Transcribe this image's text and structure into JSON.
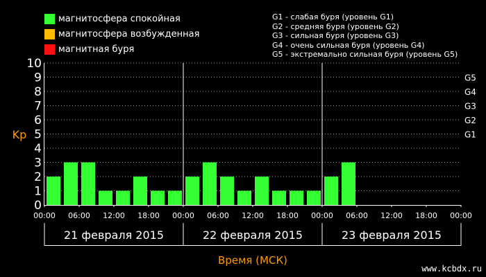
{
  "legend": [
    {
      "label": "магнитосфера спокойная",
      "color": "#33ff33"
    },
    {
      "label": "магнитосфера возбужденная",
      "color": "#ffbb00"
    },
    {
      "label": "магнитная буря",
      "color": "#ff1111"
    }
  ],
  "storm_legend": [
    "G1 - слабая буря (уровень G1)",
    "G2 - средняя буря (уровень G2)",
    "G3 - сильная буря (уровень G3)",
    "G4 - очень сильная буря (уровень G4)",
    "G5 - экстремально сильная буря (уровень G5)"
  ],
  "watermark": "www.kcbdx.ru",
  "chart_data": {
    "type": "bar",
    "ylabel": "Kp",
    "xlabel": "Время (МСК)",
    "ylim": [
      0,
      10
    ],
    "yticks": [
      0,
      1,
      2,
      3,
      4,
      5,
      6,
      7,
      8,
      9,
      10
    ],
    "g_levels": [
      {
        "label": "G1",
        "kp": 5
      },
      {
        "label": "G2",
        "kp": 6
      },
      {
        "label": "G3",
        "kp": 7
      },
      {
        "label": "G4",
        "kp": 8
      },
      {
        "label": "G5",
        "kp": 9
      }
    ],
    "xtick_labels": [
      "00:00",
      "06:00",
      "12:00",
      "18:00",
      "00:00",
      "06:00",
      "12:00",
      "18:00",
      "00:00",
      "06:00",
      "12:00",
      "18:00",
      "00:00"
    ],
    "days": [
      "21 февраля 2015",
      "22 февраля 2015",
      "23 февраля 2015"
    ],
    "bar_color": "#33ff33",
    "values": [
      2,
      3,
      3,
      1,
      1,
      2,
      1,
      1,
      2,
      3,
      2,
      1,
      2,
      1,
      1,
      1,
      2,
      3,
      null,
      null,
      null,
      null,
      null,
      null
    ],
    "grid": true
  }
}
